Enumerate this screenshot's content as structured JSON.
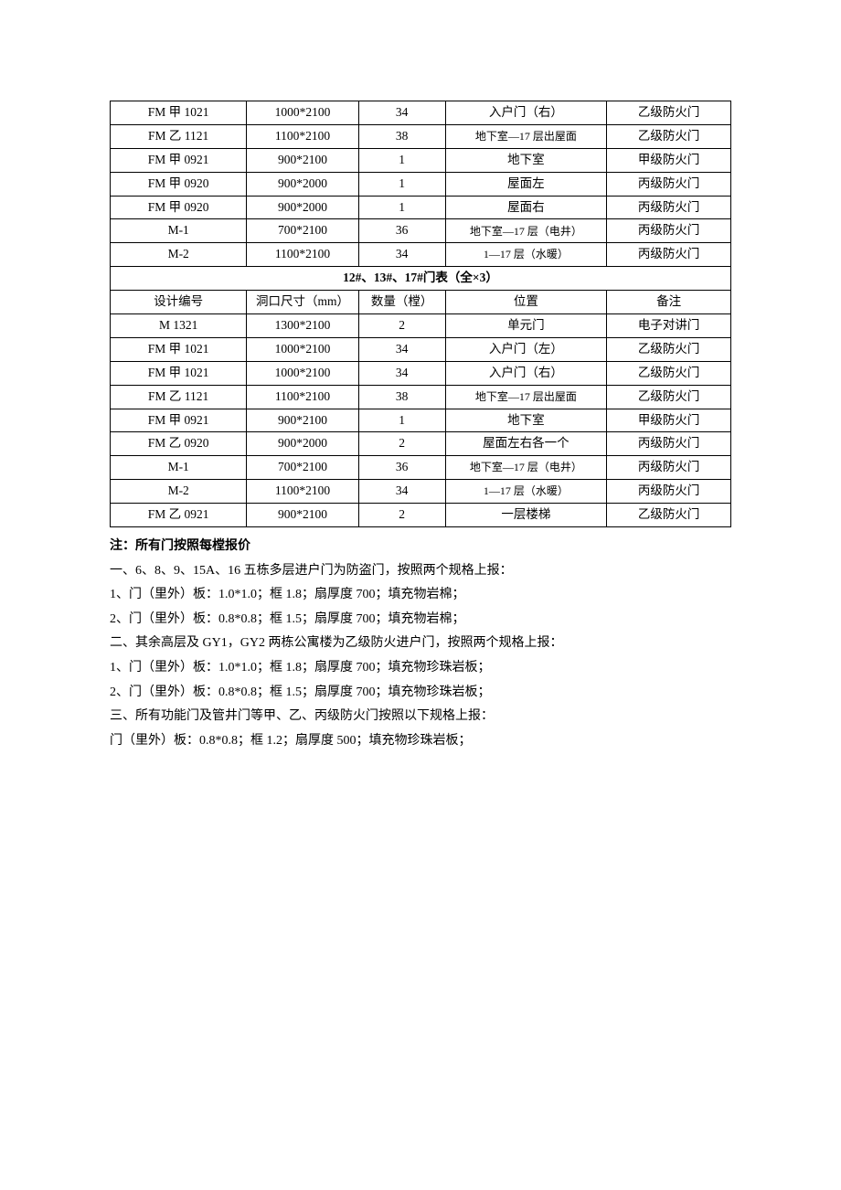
{
  "table1": {
    "rows": [
      {
        "c1": "FM 甲 1021",
        "c2": "1000*2100",
        "c3": "34",
        "c4": "入户门（右）",
        "c5": "乙级防火门",
        "c4small": false
      },
      {
        "c1": "FM 乙 1121",
        "c2": "1100*2100",
        "c3": "38",
        "c4": "地下室—17 层出屋面",
        "c5": "乙级防火门",
        "c4small": true
      },
      {
        "c1": "FM 甲 0921",
        "c2": "900*2100",
        "c3": "1",
        "c4": "地下室",
        "c5": "甲级防火门",
        "c4small": false
      },
      {
        "c1": "FM 甲 0920",
        "c2": "900*2000",
        "c3": "1",
        "c4": "屋面左",
        "c5": "丙级防火门",
        "c4small": false
      },
      {
        "c1": "FM 甲 0920",
        "c2": "900*2000",
        "c3": "1",
        "c4": "屋面右",
        "c5": "丙级防火门",
        "c4small": false
      },
      {
        "c1": "M-1",
        "c2": "700*2100",
        "c3": "36",
        "c4": "地下室—17 层（电井）",
        "c5": "丙级防火门",
        "c4small": true
      },
      {
        "c1": "M-2",
        "c2": "1100*2100",
        "c3": "34",
        "c4": "1—17 层（水暖）",
        "c5": "丙级防火门",
        "c4small": true
      }
    ]
  },
  "section_header": "12#、13#、17#门表（全×3）",
  "table2": {
    "header": {
      "c1": "设计编号",
      "c2": "洞口尺寸（mm）",
      "c3": "数量（樘）",
      "c4": "位置",
      "c5": "备注"
    },
    "rows": [
      {
        "c1": "M 1321",
        "c2": "1300*2100",
        "c3": "2",
        "c4": "单元门",
        "c5": "电子对讲门",
        "c4small": false
      },
      {
        "c1": "FM 甲 1021",
        "c2": "1000*2100",
        "c3": "34",
        "c4": "入户门（左）",
        "c5": "乙级防火门",
        "c4small": false
      },
      {
        "c1": "FM 甲 1021",
        "c2": "1000*2100",
        "c3": "34",
        "c4": "入户门（右）",
        "c5": "乙级防火门",
        "c4small": false
      },
      {
        "c1": "FM 乙 1121",
        "c2": "1100*2100",
        "c3": "38",
        "c4": "地下室—17 层出屋面",
        "c5": "乙级防火门",
        "c4small": true
      },
      {
        "c1": "FM 甲 0921",
        "c2": "900*2100",
        "c3": "1",
        "c4": "地下室",
        "c5": "甲级防火门",
        "c4small": false
      },
      {
        "c1": "FM 乙 0920",
        "c2": "900*2000",
        "c3": "2",
        "c4": "屋面左右各一个",
        "c5": "丙级防火门",
        "c4small": false
      },
      {
        "c1": "M-1",
        "c2": "700*2100",
        "c3": "36",
        "c4": "地下室—17 层（电井）",
        "c5": "丙级防火门",
        "c4small": true
      },
      {
        "c1": "M-2",
        "c2": "1100*2100",
        "c3": "34",
        "c4": "1—17 层（水暖）",
        "c5": "丙级防火门",
        "c4small": true
      },
      {
        "c1": "FM 乙 0921",
        "c2": "900*2100",
        "c3": "2",
        "c4": "一层楼梯",
        "c5": "乙级防火门",
        "c4small": false
      }
    ]
  },
  "notes": [
    {
      "text": "注：所有门按照每樘报价",
      "bold": true
    },
    {
      "text": "一、6、8、9、15A、16 五栋多层进户门为防盗门，按照两个规格上报：",
      "bold": false
    },
    {
      "text": "1、门（里外）板：1.0*1.0；框 1.8；扇厚度 700；填充物岩棉；",
      "bold": false
    },
    {
      "text": "2、门（里外）板：0.8*0.8；框 1.5；扇厚度 700；填充物岩棉；",
      "bold": false
    },
    {
      "text": "二、其余高层及 GY1，GY2 两栋公寓楼为乙级防火进户门，按照两个规格上报：",
      "bold": false
    },
    {
      "text": "1、门（里外）板：1.0*1.0；框 1.8；扇厚度 700；填充物珍珠岩板；",
      "bold": false
    },
    {
      "text": "2、门（里外）板：0.8*0.8；框 1.5；扇厚度 700；填充物珍珠岩板；",
      "bold": false
    },
    {
      "text": "三、所有功能门及管井门等甲、乙、丙级防火门按照以下规格上报：",
      "bold": false
    },
    {
      "text": "门（里外）板：0.8*0.8；框 1.2；扇厚度 500；填充物珍珠岩板；",
      "bold": false
    }
  ]
}
